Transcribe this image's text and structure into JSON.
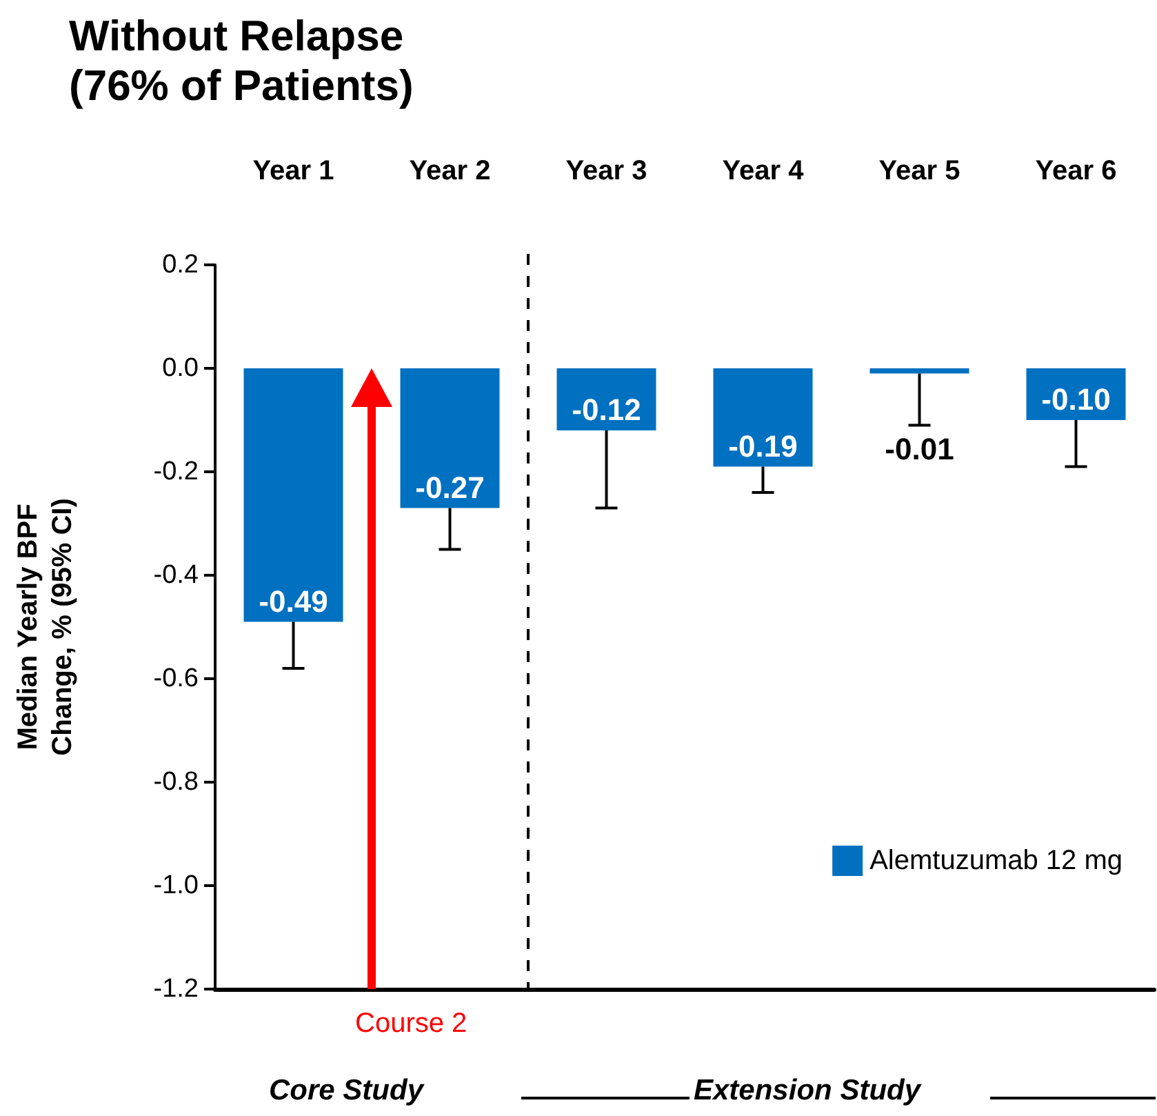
{
  "chart_data": {
    "type": "bar",
    "title": "Without Relapse\n(76% of Patients)",
    "ylabel": "Median Yearly BPF\nChange, % (95% CI)",
    "categories": [
      "Year 1",
      "Year 2",
      "Year 3",
      "Year 4",
      "Year 5",
      "Year 6"
    ],
    "series": [
      {
        "name": "Alemtuzumab 12 mg",
        "color": "#0070c0",
        "values": [
          -0.49,
          -0.27,
          -0.12,
          -0.19,
          -0.01,
          -0.1
        ],
        "errors": [
          [
            -0.58,
            -0.49
          ],
          [
            -0.35,
            -0.27
          ],
          [
            -0.27,
            -0.12
          ],
          [
            -0.24,
            -0.19
          ],
          [
            -0.11,
            -0.01
          ],
          [
            -0.19,
            -0.1
          ]
        ]
      }
    ],
    "ylim": [
      -1.2,
      0.2
    ],
    "yticks": [
      {
        "value": -1.2,
        "label": "-1.2"
      },
      {
        "value": -1.0,
        "label": "-1.0"
      },
      {
        "value": -0.8,
        "label": "-0.8"
      },
      {
        "value": -0.6,
        "label": "-0.6"
      },
      {
        "value": -0.4,
        "label": "-0.4"
      },
      {
        "value": -0.2,
        "label": "-0.2"
      },
      {
        "value": 0,
        "label": "0.0"
      },
      {
        "value": 0.2,
        "label": "0.2"
      }
    ],
    "value_labels": [
      "-0.49",
      "-0.27",
      "-0.12",
      "-0.19",
      "-0.01",
      "-0.10"
    ],
    "grid": false,
    "legend": "bottom right",
    "annotations": [
      "Course 2",
      "Core Study",
      "Extension Study"
    ]
  }
}
